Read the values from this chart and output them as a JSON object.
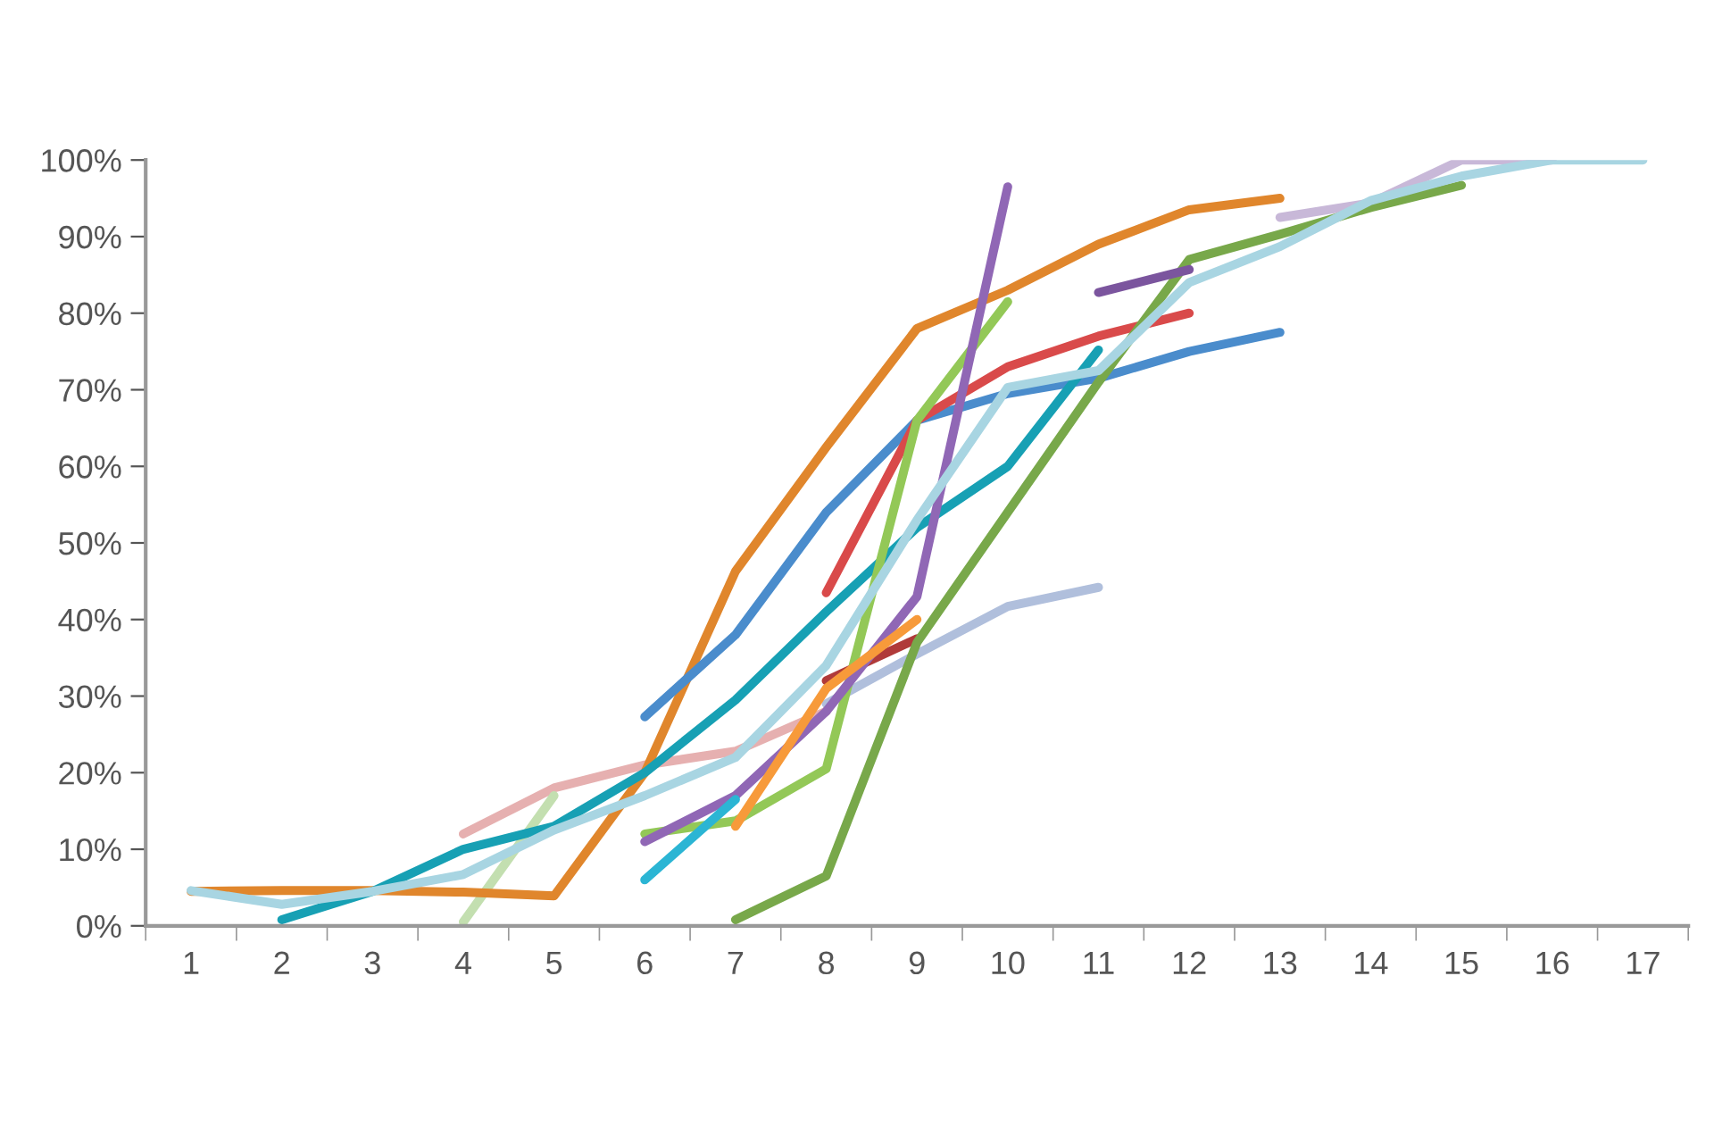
{
  "chart_data": {
    "type": "line",
    "categories": [
      "1",
      "2",
      "3",
      "4",
      "5",
      "6",
      "7",
      "8",
      "9",
      "10",
      "11",
      "12",
      "13",
      "14",
      "15",
      "16",
      "17"
    ],
    "ylim": [
      0,
      100
    ],
    "yticks": [
      {
        "value": 0,
        "label": "0%"
      },
      {
        "value": 10,
        "label": "10%"
      },
      {
        "value": 20,
        "label": "20%"
      },
      {
        "value": 30,
        "label": "30%"
      },
      {
        "value": 40,
        "label": "40%"
      },
      {
        "value": 50,
        "label": "50%"
      },
      {
        "value": 60,
        "label": "60%"
      },
      {
        "value": 70,
        "label": "70%"
      },
      {
        "value": 80,
        "label": "80%"
      },
      {
        "value": 90,
        "label": "90%"
      },
      {
        "value": 100,
        "label": "100%"
      }
    ],
    "marker": "none",
    "line_style": "solid",
    "series": [
      {
        "color": "#c8b8d8",
        "values": [
          null,
          null,
          null,
          null,
          null,
          null,
          null,
          null,
          null,
          null,
          null,
          null,
          92.5,
          94.4,
          100,
          100,
          null
        ]
      },
      {
        "color": "#b0bfdc",
        "values": [
          null,
          null,
          null,
          null,
          null,
          null,
          null,
          29,
          35.5,
          41.7,
          44.2,
          null,
          null,
          null,
          null,
          null,
          null
        ]
      },
      {
        "color": "#e6b0b0",
        "values": [
          null,
          null,
          null,
          12,
          18,
          21,
          22.8,
          28,
          null,
          null,
          null,
          null,
          null,
          null,
          null,
          null,
          null
        ]
      },
      {
        "color": "#c3dfb0",
        "values": [
          null,
          null,
          null,
          0.5,
          17,
          null,
          null,
          null,
          null,
          null,
          null,
          null,
          null,
          null,
          null,
          null,
          null
        ]
      },
      {
        "color": "#e0862c",
        "values": [
          4.5,
          4.6,
          4.6,
          4.4,
          3.9,
          20,
          46.3,
          62.5,
          78,
          83,
          89,
          93.5,
          95,
          null,
          null,
          null,
          null
        ]
      },
      {
        "color": "#4a8ccc",
        "values": [
          null,
          null,
          null,
          null,
          null,
          27.3,
          38,
          54,
          66,
          69.5,
          71.5,
          75,
          77.5,
          null,
          null,
          null,
          null
        ]
      },
      {
        "color": "#17a0b4",
        "values": [
          null,
          0.8,
          4.5,
          10,
          13,
          20,
          29.5,
          41,
          52,
          60,
          75.2,
          null,
          null,
          null,
          null,
          null,
          null
        ]
      },
      {
        "color": "#d94a4a",
        "values": [
          null,
          null,
          null,
          null,
          null,
          null,
          null,
          43.5,
          66,
          73,
          77,
          80,
          null,
          null,
          null,
          null,
          null
        ]
      },
      {
        "color": "#b03a3a",
        "values": [
          null,
          null,
          null,
          null,
          null,
          null,
          null,
          32,
          37.5,
          null,
          null,
          null,
          null,
          null,
          null,
          null,
          null
        ]
      },
      {
        "color": "#78a84a",
        "values": [
          null,
          null,
          null,
          null,
          null,
          null,
          0.8,
          6.5,
          37,
          54,
          71,
          87,
          90.3,
          93.8,
          96.7,
          null,
          null
        ]
      },
      {
        "color": "#93c857",
        "values": [
          null,
          null,
          null,
          null,
          null,
          12,
          13.7,
          20.5,
          66,
          81.5,
          null,
          null,
          null,
          null,
          null,
          null,
          null
        ]
      },
      {
        "color": "#9067b5",
        "values": [
          null,
          null,
          null,
          null,
          null,
          11,
          17,
          28,
          43,
          96.5,
          null,
          null,
          null,
          null,
          null,
          null,
          null
        ]
      },
      {
        "color": "#7b559e",
        "values": [
          null,
          null,
          null,
          null,
          null,
          null,
          null,
          null,
          null,
          null,
          82.7,
          85.7,
          null,
          null,
          null,
          null,
          null
        ]
      },
      {
        "color": "#2bb5d4",
        "values": [
          null,
          null,
          null,
          null,
          null,
          6,
          16.5,
          null,
          null,
          null,
          null,
          null,
          null,
          null,
          null,
          null,
          null
        ]
      },
      {
        "color": "#f79a3a",
        "values": [
          null,
          null,
          null,
          null,
          null,
          null,
          13,
          31,
          40,
          null,
          null,
          null,
          null,
          null,
          null,
          null,
          null
        ]
      },
      {
        "color": "#a8d5e2",
        "values": [
          4.6,
          2.8,
          4.5,
          6.7,
          12.5,
          17,
          22,
          34,
          53,
          70.3,
          72.5,
          84,
          88.7,
          94.7,
          97.9,
          100,
          100
        ]
      }
    ]
  }
}
